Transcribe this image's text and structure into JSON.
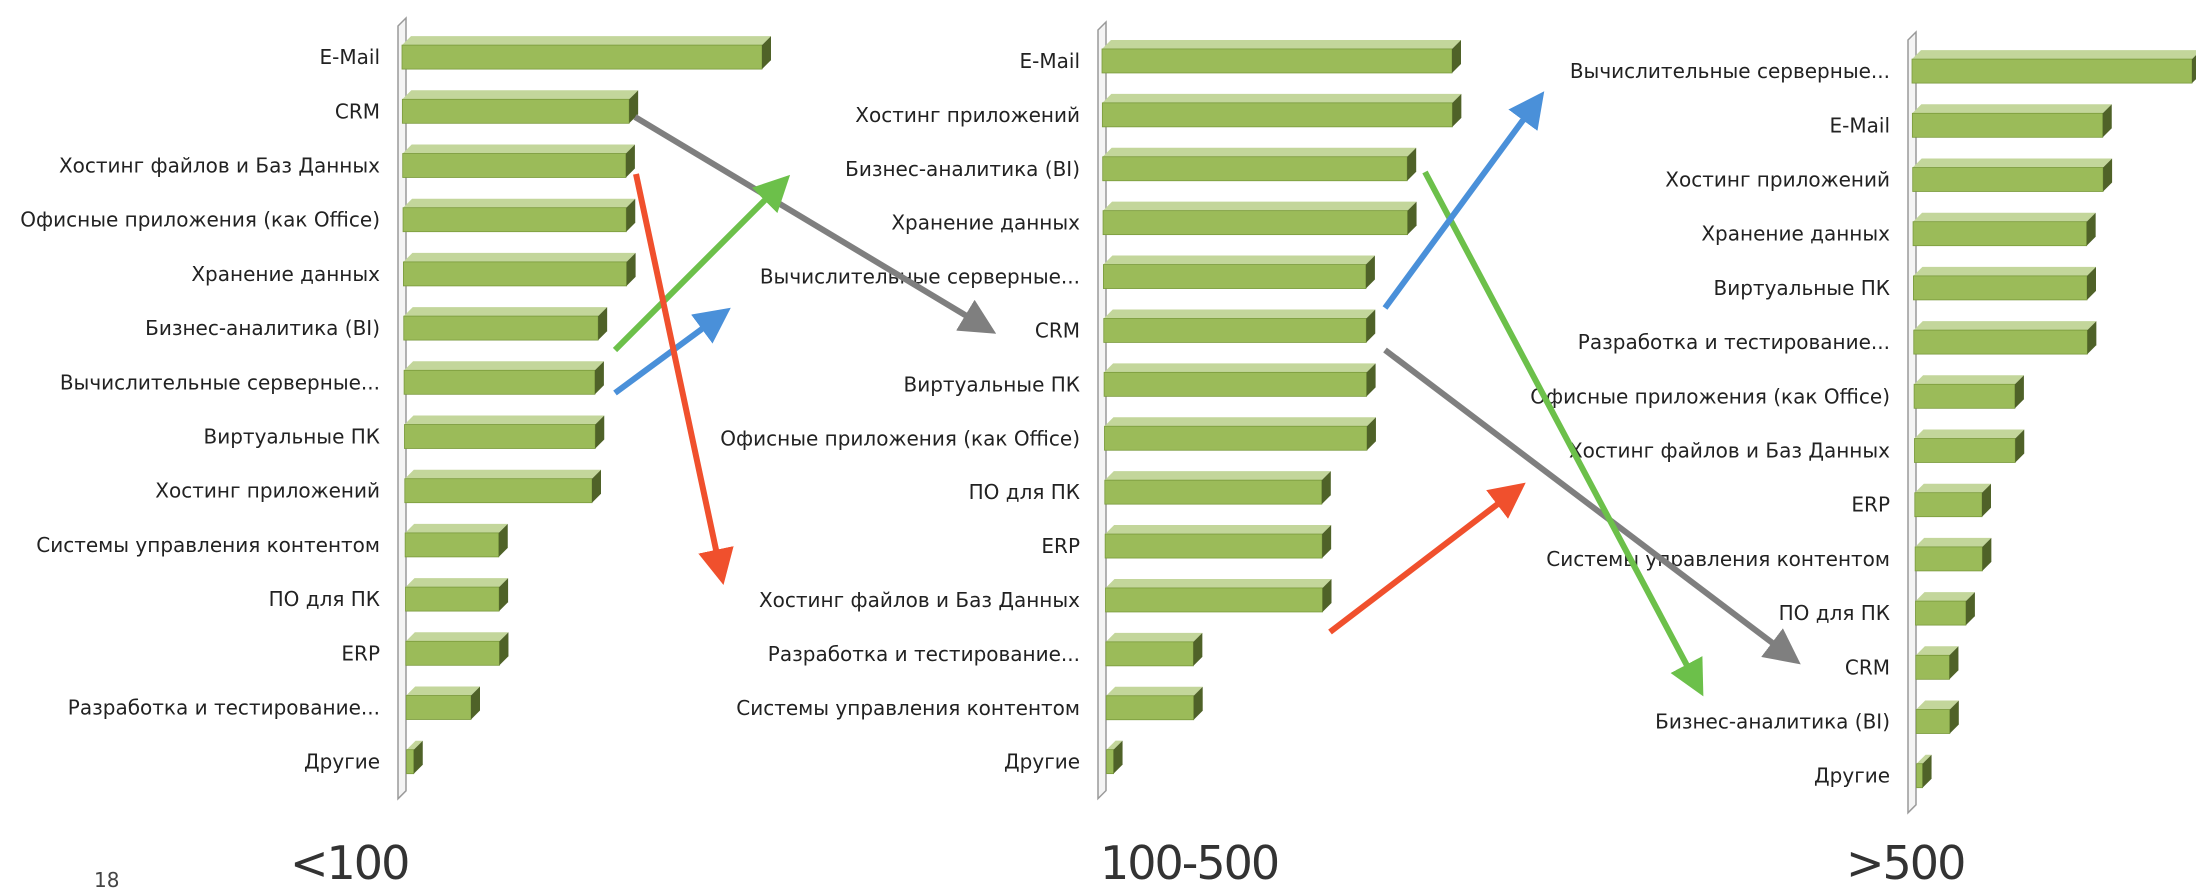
{
  "slide": {
    "page_number": "18"
  },
  "colors": {
    "bar_front": "#9bbb59",
    "bar_top": "#c3d69b",
    "bar_side": "#4f6228",
    "arrow_gray": "#7f7f7f",
    "arrow_green": "#6cc04a",
    "arrow_blue": "#4a90d9",
    "arrow_red": "#f0502d"
  },
  "chart_data": [
    {
      "type": "bar",
      "orientation": "horizontal",
      "title": "<100",
      "categories": [
        "E-Mail",
        "CRM",
        "Хостинг файлов и Баз Данных",
        "Офисные приложения (как Office)",
        "Хранение данных",
        "Бизнес-аналитика (BI)",
        "Вычислительные серверные...",
        "Виртуальные ПК",
        "Хостинг приложений",
        "Системы управления контентом",
        "ПО для ПК",
        "ERP",
        "Разработка и тестирование...",
        "Другие"
      ],
      "values": [
        100,
        63,
        62,
        62,
        62,
        54,
        53,
        53,
        52,
        26,
        26,
        26,
        18,
        2
      ],
      "xlim": [
        0,
        100
      ],
      "grid": false,
      "legend": "none"
    },
    {
      "type": "bar",
      "orientation": "horizontal",
      "title": "100-500",
      "categories": [
        "E-Mail",
        "Хостинг приложений",
        "Бизнес-аналитика (BI)",
        "Хранение данных",
        "Вычислительные серверные...",
        "CRM",
        "Виртуальные ПК",
        "Офисные приложения (как Office)",
        "ПО для ПК",
        "ERP",
        "Хостинг файлов и Баз Данных",
        "Разработка и тестирование...",
        "Системы управления контентом",
        "Другие"
      ],
      "values": [
        100,
        100,
        87,
        87,
        75,
        75,
        75,
        75,
        62,
        62,
        62,
        25,
        25,
        2
      ],
      "xlim": [
        0,
        100
      ],
      "grid": false,
      "legend": "none"
    },
    {
      "type": "bar",
      "orientation": "horizontal",
      "title": ">500",
      "categories": [
        "Вычислительные серверные...",
        "E-Mail",
        "Хостинг приложений",
        "Хранение данных",
        "Виртуальные ПК",
        "Разработка и тестирование...",
        "Офисные приложения (как Office)",
        "Хостинг файлов и Баз Данных",
        "ERP",
        "Системы управления контентом",
        "ПО для ПК",
        "CRM",
        "Бизнес-аналитика (BI)",
        "Другие"
      ],
      "values": [
        100,
        68,
        68,
        62,
        62,
        62,
        36,
        36,
        24,
        24,
        18,
        12,
        12,
        2
      ],
      "xlim": [
        0,
        100
      ],
      "grid": false,
      "legend": "none"
    }
  ]
}
